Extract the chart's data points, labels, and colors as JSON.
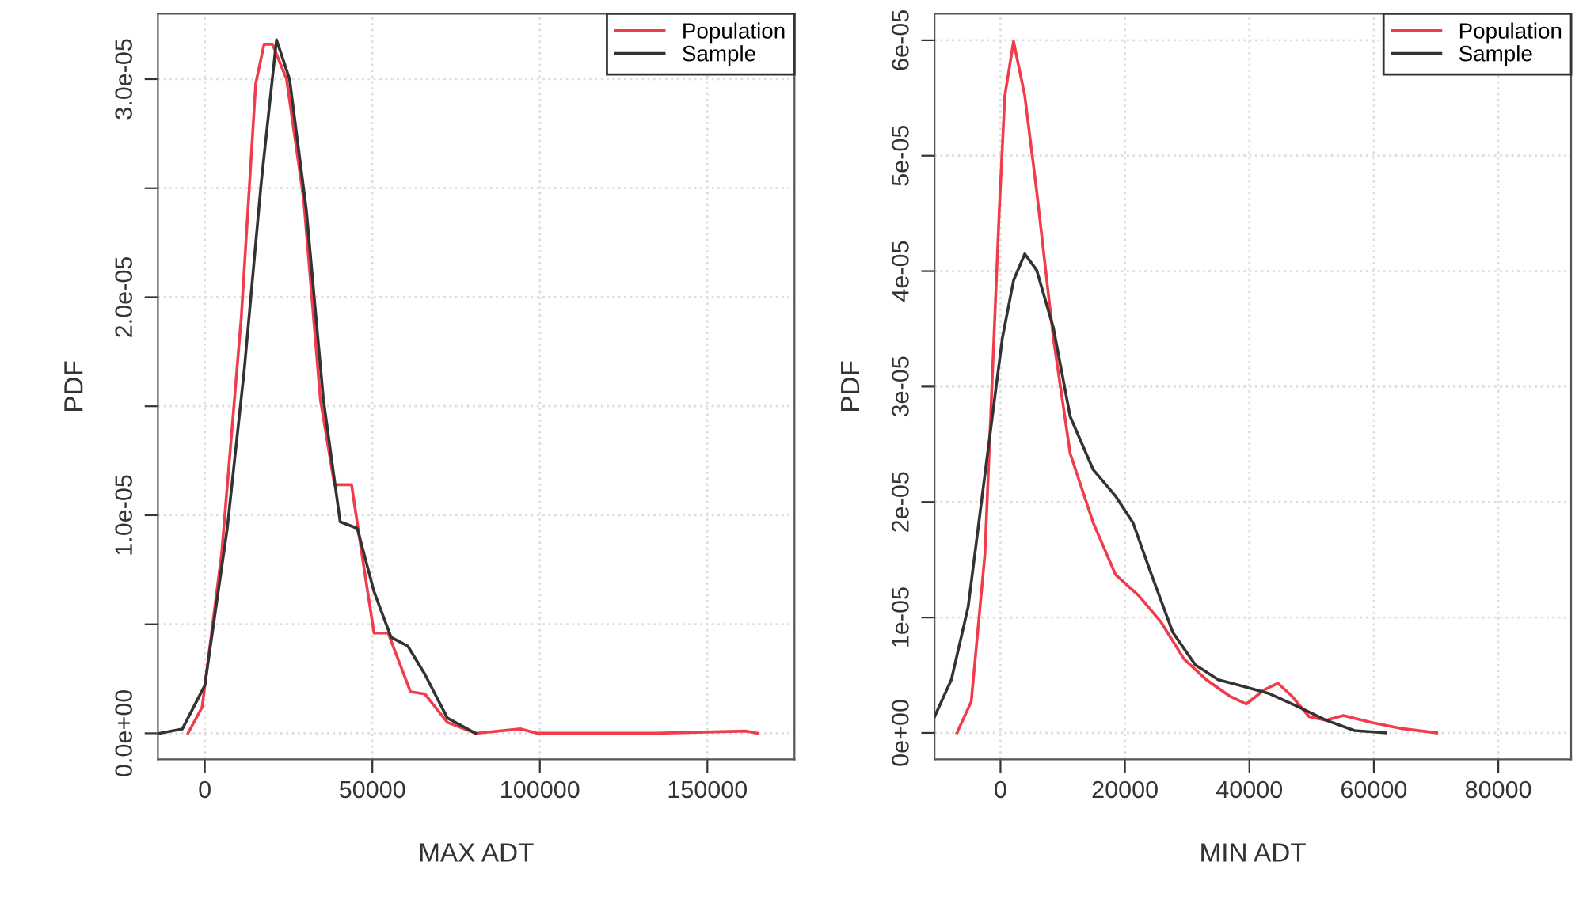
{
  "chart_data": [
    {
      "type": "line",
      "xlabel": "MAX ADT",
      "ylabel": "PDF",
      "legend": "top right",
      "grid": true,
      "marker": "none",
      "line_style": "solid",
      "xlim": [
        -14000,
        176000
      ],
      "ylim": [
        -1.2e-06,
        3.3e-05
      ],
      "xticks": [
        0,
        50000,
        100000,
        150000
      ],
      "yticks": [
        {
          "value": 0,
          "label": "0.0e+00"
        },
        {
          "value": 5e-06,
          "label": null
        },
        {
          "value": 1e-05,
          "label": "1.0e-05"
        },
        {
          "value": 1.5e-05,
          "label": null
        },
        {
          "value": 2e-05,
          "label": "2.0e-05"
        },
        {
          "value": 2.5e-05,
          "label": null
        },
        {
          "value": 3e-05,
          "label": "3.0e-05"
        }
      ],
      "series": [
        {
          "name": "Population",
          "color": "#f03c4b",
          "x": [
            -5000,
            -800,
            5000,
            10900,
            15200,
            17700,
            20200,
            24400,
            29500,
            34500,
            38700,
            43800,
            47100,
            50500,
            54700,
            61400,
            65700,
            72400,
            80800,
            94300,
            99300,
            134700,
            161600,
            165000
          ],
          "values": [
            0,
            1.2e-06,
            8.2e-06,
            1.91e-05,
            2.98e-05,
            3.16e-05,
            3.16e-05,
            3e-05,
            2.45e-05,
            1.53e-05,
            1.14e-05,
            1.14e-05,
            8e-06,
            4.6e-06,
            4.6e-06,
            1.9e-06,
            1.8e-06,
            5e-07,
            0,
            2e-07,
            0,
            0,
            1e-07,
            0
          ]
        },
        {
          "name": "Sample",
          "color": "#333333",
          "x": [
            -13500,
            -6700,
            0,
            6700,
            11800,
            16800,
            21400,
            25300,
            30300,
            35400,
            40400,
            45500,
            50500,
            55600,
            60600,
            65700,
            72400,
            80800
          ],
          "values": [
            0,
            2e-07,
            2.2e-06,
            9.4e-06,
            1.67e-05,
            2.52e-05,
            3.18e-05,
            3e-05,
            2.4e-05,
            1.53e-05,
            9.7e-06,
            9.4e-06,
            6.5e-06,
            4.4e-06,
            4e-06,
            2.7e-06,
            7e-07,
            0
          ]
        }
      ]
    },
    {
      "type": "line",
      "xlabel": "MIN ADT",
      "ylabel": "PDF",
      "legend": "top right",
      "grid": true,
      "marker": "none",
      "line_style": "solid",
      "xlim": [
        -10600,
        91700
      ],
      "ylim": [
        -2.3e-06,
        6.23e-05
      ],
      "xticks": [
        0,
        20000,
        40000,
        60000,
        80000
      ],
      "yticks": [
        {
          "value": 0,
          "label": "0e+00"
        },
        {
          "value": 1e-05,
          "label": "1e-05"
        },
        {
          "value": 2e-05,
          "label": "2e-05"
        },
        {
          "value": 3e-05,
          "label": "3e-05"
        },
        {
          "value": 4e-05,
          "label": "4e-05"
        },
        {
          "value": 5e-05,
          "label": "5e-05"
        },
        {
          "value": 6e-05,
          "label": "6e-05"
        }
      ],
      "series": [
        {
          "name": "Population",
          "color": "#f03c4b",
          "x": [
            -7000,
            -4700,
            -2500,
            -200,
            700,
            2100,
            3900,
            5800,
            8500,
            11200,
            14900,
            18500,
            22200,
            25800,
            29500,
            33100,
            36800,
            39500,
            42300,
            44600,
            46800,
            49600,
            52300,
            55100,
            59600,
            64200,
            70100
          ],
          "values": [
            0,
            2.7e-06,
            1.55e-05,
            4.52e-05,
            5.52e-05,
            5.99e-05,
            5.52e-05,
            4.7e-05,
            3.42e-05,
            2.42e-05,
            1.82e-05,
            1.37e-05,
            1.19e-05,
            9.6e-06,
            6.4e-06,
            4.6e-06,
            3.2e-06,
            2.5e-06,
            3.7e-06,
            4.3e-06,
            3.2e-06,
            1.4e-06,
            1.1e-06,
            1.5e-06,
            9e-07,
            4e-07,
            0
          ]
        },
        {
          "name": "Sample",
          "color": "#333333",
          "x": [
            -10600,
            -7900,
            -5200,
            -2500,
            300,
            2100,
            3900,
            5800,
            8500,
            11200,
            14900,
            18500,
            21300,
            24000,
            27700,
            31300,
            35000,
            38600,
            43200,
            47700,
            52300,
            56900,
            61900
          ],
          "values": [
            1.4e-06,
            4.6e-06,
            1.09e-05,
            2.24e-05,
            3.42e-05,
            3.92e-05,
            4.15e-05,
            4.01e-05,
            3.51e-05,
            2.74e-05,
            2.28e-05,
            2.05e-05,
            1.82e-05,
            1.41e-05,
            8.7e-06,
            5.9e-06,
            4.6e-06,
            4.1e-06,
            3.4e-06,
            2.3e-06,
            1.1e-06,
            2e-07,
            0
          ]
        }
      ]
    }
  ]
}
